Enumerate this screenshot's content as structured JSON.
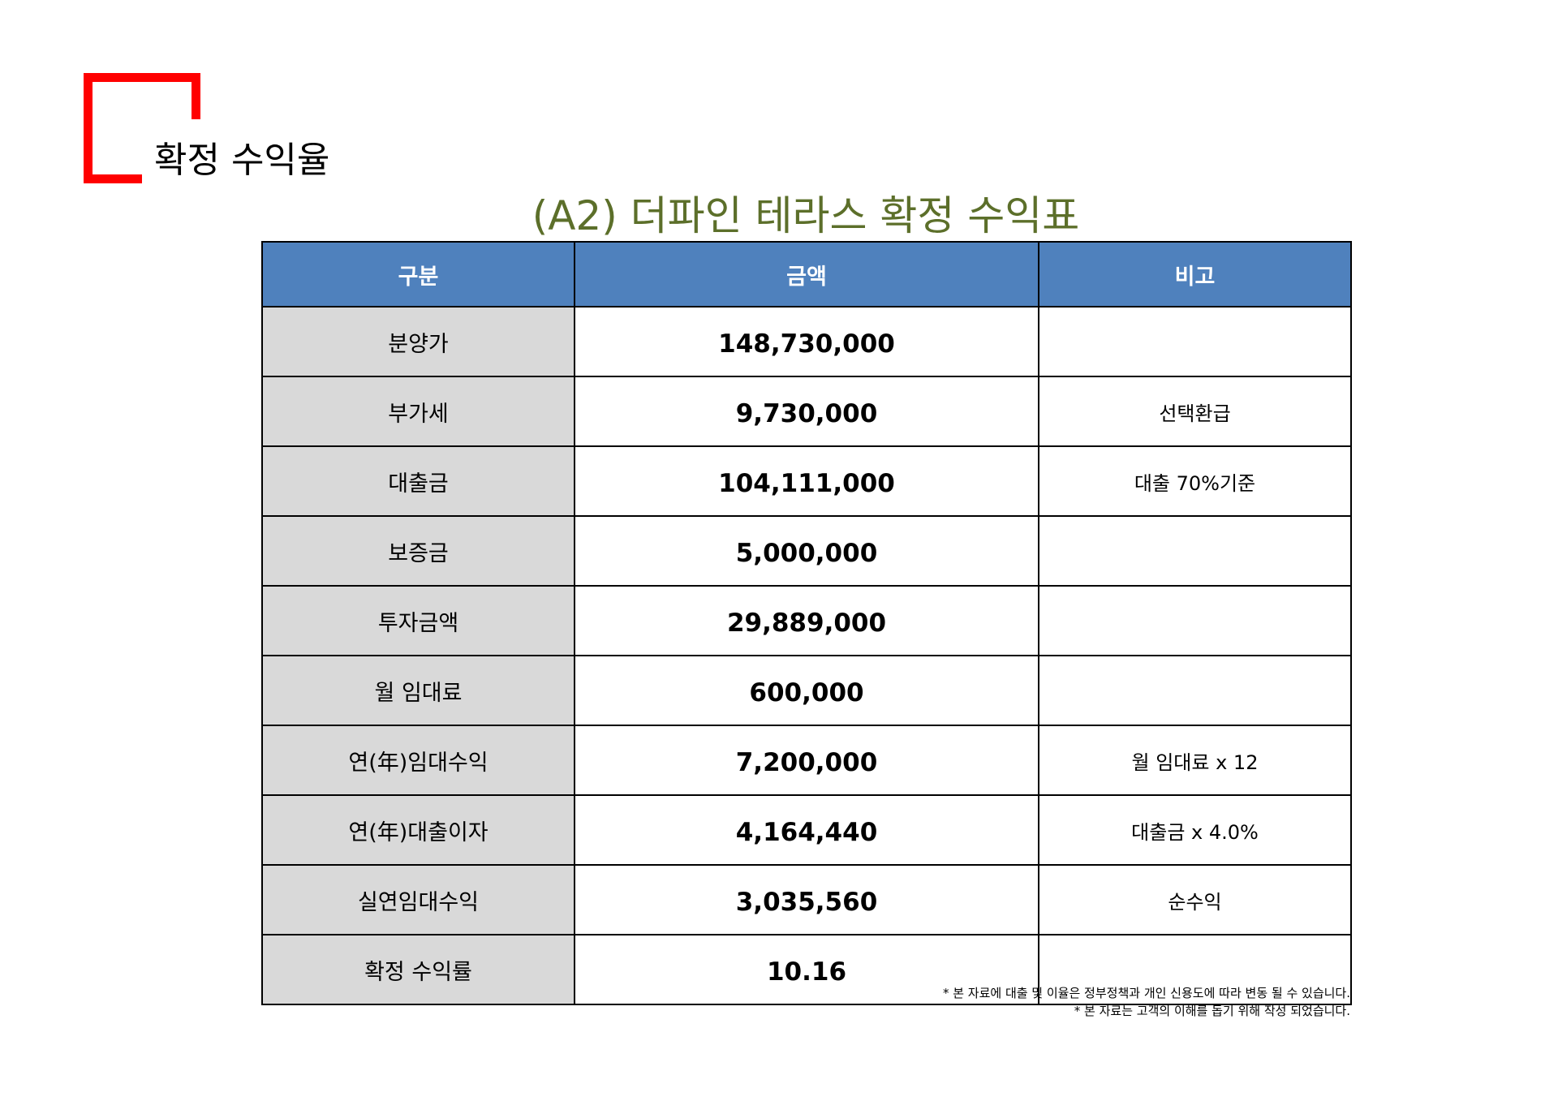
{
  "section": {
    "heading": "확정 수익율"
  },
  "table": {
    "title": "(A2) 더파인 테라스 확정 수익표",
    "headers": [
      "구분",
      "금액",
      "비고"
    ],
    "rows": [
      {
        "label": "분양가",
        "amount": "148,730,000",
        "note": ""
      },
      {
        "label": "부가세",
        "amount": "9,730,000",
        "note": "선택환급"
      },
      {
        "label": "대출금",
        "amount": "104,111,000",
        "note": "대출 70%기준"
      },
      {
        "label": "보증금",
        "amount": "5,000,000",
        "note": ""
      },
      {
        "label": "투자금액",
        "amount": "29,889,000",
        "note": ""
      },
      {
        "label": "월 임대료",
        "amount": "600,000",
        "note": ""
      },
      {
        "label": "연(年)임대수익",
        "amount": "7,200,000",
        "note": "월 임대료 x 12"
      },
      {
        "label": "연(年)대출이자",
        "amount": "4,164,440",
        "note": "대출금 x 4.0%"
      },
      {
        "label": "실연임대수익",
        "amount": "3,035,560",
        "note": "순수익"
      },
      {
        "label": "확정 수익률",
        "amount": "10.16",
        "note": ""
      }
    ]
  },
  "footnotes": [
    "* 본 자료에 대출 및 이율은 정부정책과 개인 신용도에 따라 변동 될 수 있습니다.",
    "* 본 자료는 고객의 이해를 돕기 위해 작성 되었습니다."
  ],
  "colors": {
    "accent": "#ff0000",
    "header_bg": "#4f81bd",
    "label_bg": "#d9d9d9",
    "title": "#5c6f2a"
  }
}
